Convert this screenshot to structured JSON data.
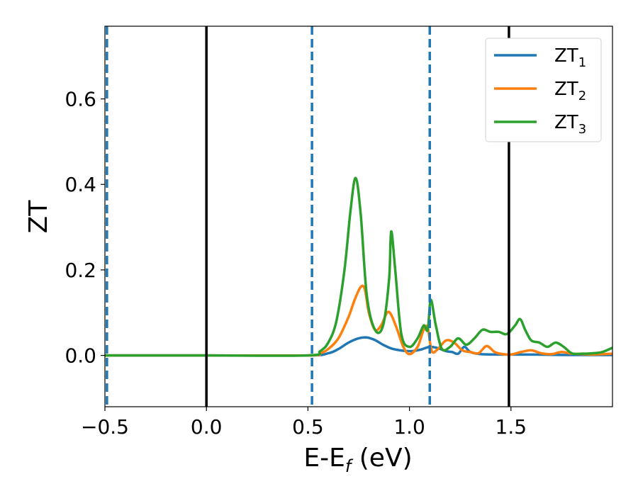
{
  "chart_data": {
    "type": "line",
    "xlabel": "E-E",
    "xlabel_sub": "f",
    "xlabel_unit": " (eV)",
    "ylabel": "ZT",
    "xlim": [
      -0.5,
      2.0
    ],
    "ylim": [
      -0.12,
      0.77
    ],
    "x_ticks": [
      -0.5,
      0.0,
      0.5,
      1.0,
      1.5
    ],
    "x_tick_labels": [
      "−0.5",
      "0.0",
      "0.5",
      "1.0",
      "1.5"
    ],
    "y_ticks": [
      0.0,
      0.2,
      0.4,
      0.6
    ],
    "y_tick_labels": [
      "0.0",
      "0.2",
      "0.4",
      "0.6"
    ],
    "grid": false,
    "legend_position": "top-right",
    "vertical_lines": [
      {
        "x": -0.49,
        "style": "dashed",
        "color": "#1f77b4"
      },
      {
        "x": 0.0,
        "style": "solid",
        "color": "#000000"
      },
      {
        "x": 0.52,
        "style": "dashed",
        "color": "#1f77b4"
      },
      {
        "x": 1.1,
        "style": "dashed",
        "color": "#1f77b4"
      },
      {
        "x": 1.49,
        "style": "solid",
        "color": "#000000"
      }
    ],
    "series": [
      {
        "name": "ZT",
        "name_sub": "1",
        "color": "#1f77b4",
        "x": [
          -0.5,
          0.0,
          0.5,
          0.6,
          0.65,
          0.7,
          0.75,
          0.79,
          0.83,
          0.87,
          0.92,
          1.0,
          1.05,
          1.1,
          1.14,
          1.18,
          1.21,
          1.24,
          1.27,
          1.3,
          1.35,
          1.45,
          1.6,
          1.8,
          2.0
        ],
        "y": [
          0.0,
          0.0,
          0.0,
          0.005,
          0.015,
          0.03,
          0.04,
          0.042,
          0.036,
          0.025,
          0.015,
          0.01,
          0.013,
          0.02,
          0.017,
          0.01,
          0.008,
          0.004,
          0.02,
          0.008,
          0.003,
          0.002,
          0.002,
          0.001,
          0.001
        ]
      },
      {
        "name": "ZT",
        "name_sub": "2",
        "color": "#ff7f0e",
        "x": [
          -0.5,
          0.0,
          0.5,
          0.56,
          0.6,
          0.65,
          0.7,
          0.73,
          0.76,
          0.78,
          0.8,
          0.83,
          0.86,
          0.89,
          0.91,
          0.94,
          0.97,
          1.0,
          1.04,
          1.07,
          1.09,
          1.11,
          1.14,
          1.18,
          1.22,
          1.26,
          1.3,
          1.34,
          1.38,
          1.42,
          1.46,
          1.5,
          1.55,
          1.6,
          1.65,
          1.7,
          1.75,
          1.8,
          1.85,
          1.9,
          1.95,
          2.0
        ],
        "y": [
          0.0,
          0.0,
          0.0,
          0.005,
          0.015,
          0.04,
          0.09,
          0.13,
          0.16,
          0.155,
          0.1,
          0.06,
          0.07,
          0.1,
          0.095,
          0.06,
          0.02,
          0.003,
          0.02,
          0.06,
          0.065,
          0.01,
          0.015,
          0.035,
          0.03,
          0.012,
          0.008,
          0.005,
          0.022,
          0.008,
          0.003,
          0.002,
          0.008,
          0.012,
          0.005,
          0.003,
          0.008,
          0.004,
          0.003,
          0.002,
          0.003,
          0.004
        ]
      },
      {
        "name": "ZT",
        "name_sub": "3",
        "color": "#2ca02c",
        "x": [
          -0.5,
          0.0,
          0.5,
          0.56,
          0.6,
          0.64,
          0.68,
          0.71,
          0.735,
          0.76,
          0.79,
          0.83,
          0.87,
          0.9,
          0.91,
          0.93,
          0.96,
          1.0,
          1.04,
          1.07,
          1.09,
          1.105,
          1.13,
          1.16,
          1.2,
          1.24,
          1.28,
          1.32,
          1.36,
          1.4,
          1.44,
          1.48,
          1.52,
          1.545,
          1.57,
          1.6,
          1.64,
          1.68,
          1.72,
          1.76,
          1.8,
          1.85,
          1.9,
          1.95,
          2.0
        ],
        "y": [
          0.0,
          0.0,
          0.0,
          0.01,
          0.03,
          0.08,
          0.2,
          0.34,
          0.415,
          0.33,
          0.14,
          0.06,
          0.07,
          0.18,
          0.29,
          0.2,
          0.05,
          0.02,
          0.04,
          0.07,
          0.06,
          0.13,
          0.07,
          0.015,
          0.02,
          0.04,
          0.025,
          0.04,
          0.06,
          0.055,
          0.055,
          0.05,
          0.07,
          0.085,
          0.06,
          0.035,
          0.03,
          0.02,
          0.03,
          0.02,
          0.005,
          0.004,
          0.005,
          0.008,
          0.018
        ]
      }
    ]
  }
}
